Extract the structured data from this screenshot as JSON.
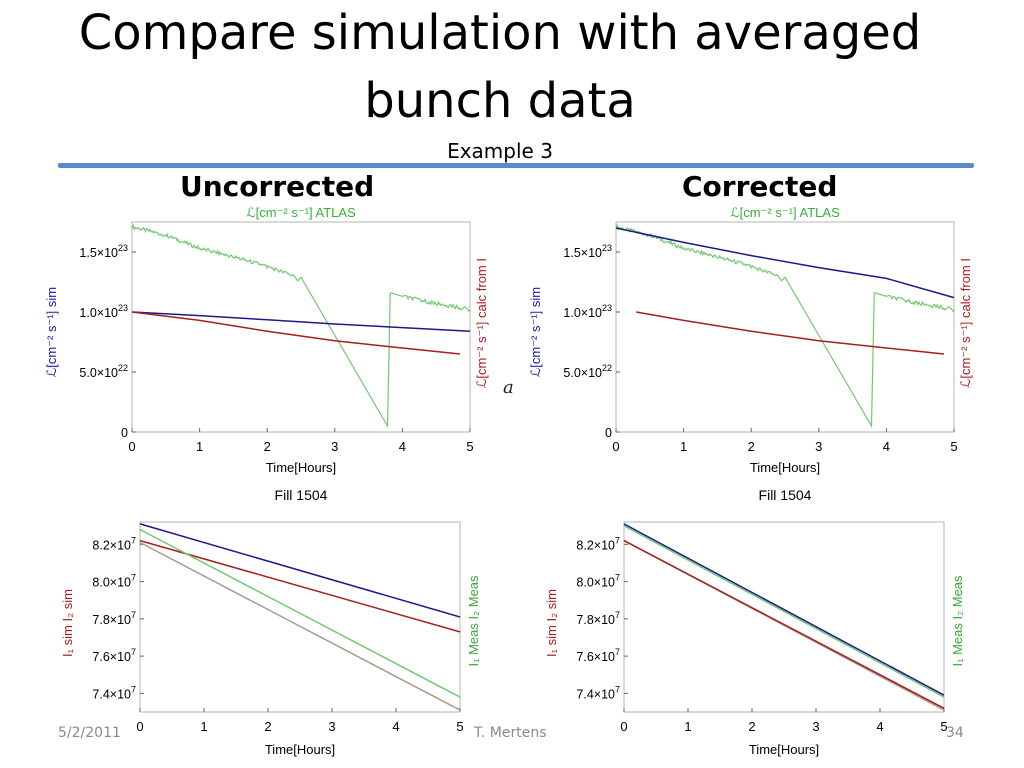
{
  "slide": {
    "title_line1": "Compare simulation with averaged",
    "title_line2": "bunch data",
    "subtitle": "Example 3",
    "col_left": "Uncorrected",
    "col_right": "Corrected",
    "footer_date": "5/2/2011",
    "footer_author": "T. Mertens",
    "page_number": "34",
    "stray_glyph": "a",
    "accent_color": "#5b8cc7"
  },
  "chart_data": [
    {
      "id": "lumi-uncorrected",
      "type": "line",
      "top_label": "ℒ[cm⁻² s⁻¹] ATLAS",
      "left_label": "ℒ[cm⁻² s⁻¹] sim",
      "right_label": "ℒ[cm⁻² s⁻¹] calc from I",
      "xlabel": "Time[Hours]",
      "caption": "Fill 1504",
      "xlim": [
        0,
        5
      ],
      "ylim": [
        0,
        1.75e+23
      ],
      "xticks": [
        "0",
        "1",
        "2",
        "3",
        "4",
        "5"
      ],
      "yticks": [
        {
          "v": 0,
          "m": "0",
          "e": ""
        },
        {
          "v": 5e+22,
          "m": "5.0×10",
          "e": "22"
        },
        {
          "v": 1e+23,
          "m": "1.0×10",
          "e": "23"
        },
        {
          "v": 1.5e+23,
          "m": "1.5×10",
          "e": "23"
        }
      ],
      "series": [
        {
          "name": "ATLAS",
          "color": "#72c96f",
          "x": [
            0,
            0.5,
            1.0,
            1.5,
            2.0,
            2.4,
            2.45,
            2.5,
            3.78,
            3.82,
            3.83,
            4.0,
            4.5,
            5.0
          ],
          "y": [
            1.71e+23,
            1.64e+23,
            1.53e+23,
            1.46e+23,
            1.38e+23,
            1.3e+23,
            1.26e+23,
            1.29e+23,
            5e+21,
            1.15e+23,
            1.16e+23,
            1.13e+23,
            1.07e+23,
            1.02e+23
          ]
        },
        {
          "name": "sim",
          "color": "#1a1a8c",
          "x": [
            0,
            1,
            2,
            3,
            4,
            5
          ],
          "y": [
            1e+23,
            9.7e+22,
            9.35e+22,
            9e+22,
            8.7e+22,
            8.4e+22
          ]
        },
        {
          "name": "calc from I",
          "color": "#a51f1f",
          "x": [
            0,
            1,
            2,
            3,
            4,
            4.85
          ],
          "y": [
            1e+23,
            9.3e+22,
            8.4e+22,
            7.6e+22,
            7e+22,
            6.5e+22
          ]
        }
      ]
    },
    {
      "id": "lumi-corrected",
      "type": "line",
      "top_label": "ℒ[cm⁻² s⁻¹] ATLAS",
      "left_label": "ℒ[cm⁻² s⁻¹] sim",
      "right_label": "ℒ[cm⁻² s⁻¹] calc from I",
      "xlabel": "Time[Hours]",
      "caption": "Fill 1504",
      "xlim": [
        0,
        5
      ],
      "ylim": [
        0,
        1.75e+23
      ],
      "xticks": [
        "0",
        "1",
        "2",
        "3",
        "4",
        "5"
      ],
      "yticks": [
        {
          "v": 0,
          "m": "0",
          "e": ""
        },
        {
          "v": 5e+22,
          "m": "5.0×10",
          "e": "22"
        },
        {
          "v": 1e+23,
          "m": "1.0×10",
          "e": "23"
        },
        {
          "v": 1.5e+23,
          "m": "1.5×10",
          "e": "23"
        }
      ],
      "series": [
        {
          "name": "ATLAS",
          "color": "#72c96f",
          "x": [
            0,
            0.5,
            1.0,
            1.5,
            2.0,
            2.4,
            2.45,
            2.5,
            3.78,
            3.82,
            3.83,
            4.0,
            4.5,
            5.0
          ],
          "y": [
            1.71e+23,
            1.64e+23,
            1.53e+23,
            1.46e+23,
            1.38e+23,
            1.3e+23,
            1.26e+23,
            1.29e+23,
            5e+21,
            1.15e+23,
            1.16e+23,
            1.13e+23,
            1.07e+23,
            1.02e+23
          ]
        },
        {
          "name": "sim",
          "color": "#1a1a8c",
          "x": [
            0,
            1,
            2,
            3,
            4,
            5
          ],
          "y": [
            1.7e+23,
            1.58e+23,
            1.47e+23,
            1.37e+23,
            1.28e+23,
            1.12e+23
          ]
        },
        {
          "name": "calc from I",
          "color": "#a51f1f",
          "x": [
            0.3,
            1,
            2,
            3,
            4,
            4.85
          ],
          "y": [
            1e+23,
            9.3e+22,
            8.4e+22,
            7.6e+22,
            7e+22,
            6.5e+22
          ]
        }
      ]
    },
    {
      "id": "intensity-uncorrected",
      "type": "line",
      "left_label": "I₁ sim   I₂ sim",
      "right_label": "I₁ Meas   I₂ Meas",
      "xlabel": "Time[Hours]",
      "xlim": [
        0,
        5
      ],
      "ylim": [
        73000000.0,
        83200000.0
      ],
      "xticks": [
        "0",
        "1",
        "2",
        "3",
        "4",
        "5"
      ],
      "yticks": [
        {
          "v": 74000000.0,
          "m": "7.4×10",
          "e": "7"
        },
        {
          "v": 76000000.0,
          "m": "7.6×10",
          "e": "7"
        },
        {
          "v": 78000000.0,
          "m": "7.8×10",
          "e": "7"
        },
        {
          "v": 80000000.0,
          "m": "8.0×10",
          "e": "7"
        },
        {
          "v": 82000000.0,
          "m": "8.2×10",
          "e": "7"
        }
      ],
      "series": [
        {
          "name": "I1 sim",
          "color": "#1a1a8c",
          "x": [
            0,
            5
          ],
          "y": [
            83100000.0,
            78100000.0
          ]
        },
        {
          "name": "I2 sim",
          "color": "#a51f1f",
          "x": [
            0,
            5
          ],
          "y": [
            82200000.0,
            77300000.0
          ]
        },
        {
          "name": "I1 Meas",
          "color": "#72c96f",
          "x": [
            0,
            5
          ],
          "y": [
            82800000.0,
            73800000.0
          ]
        },
        {
          "name": "I2 Meas",
          "color": "#a89b8c",
          "x": [
            0,
            5
          ],
          "y": [
            82100000.0,
            73100000.0
          ]
        }
      ]
    },
    {
      "id": "intensity-corrected",
      "type": "line",
      "left_label": "I₁ sim   I₂ sim",
      "right_label": "I₁ Meas   I₂ Meas",
      "xlabel": "Time[Hours]",
      "xlim": [
        0,
        5
      ],
      "ylim": [
        73000000.0,
        83200000.0
      ],
      "xticks": [
        "0",
        "1",
        "2",
        "3",
        "4",
        "5"
      ],
      "yticks": [
        {
          "v": 74000000.0,
          "m": "7.4×10",
          "e": "7"
        },
        {
          "v": 76000000.0,
          "m": "7.6×10",
          "e": "7"
        },
        {
          "v": 78000000.0,
          "m": "7.8×10",
          "e": "7"
        },
        {
          "v": 80000000.0,
          "m": "8.0×10",
          "e": "7"
        },
        {
          "v": 82000000.0,
          "m": "8.2×10",
          "e": "7"
        }
      ],
      "series": [
        {
          "name": "I1 Meas",
          "color": "#72c96f",
          "x": [
            0,
            5
          ],
          "y": [
            83000000.0,
            73800000.0
          ]
        },
        {
          "name": "I1 sim",
          "color": "#1a1a8c",
          "x": [
            0,
            5
          ],
          "y": [
            83100000.0,
            73900000.0
          ]
        },
        {
          "name": "I2 Meas",
          "color": "#a89b8c",
          "x": [
            0,
            5
          ],
          "y": [
            82200000.0,
            73100000.0
          ]
        },
        {
          "name": "I2 sim",
          "color": "#a51f1f",
          "x": [
            0,
            5
          ],
          "y": [
            82200000.0,
            73200000.0
          ]
        }
      ]
    }
  ]
}
